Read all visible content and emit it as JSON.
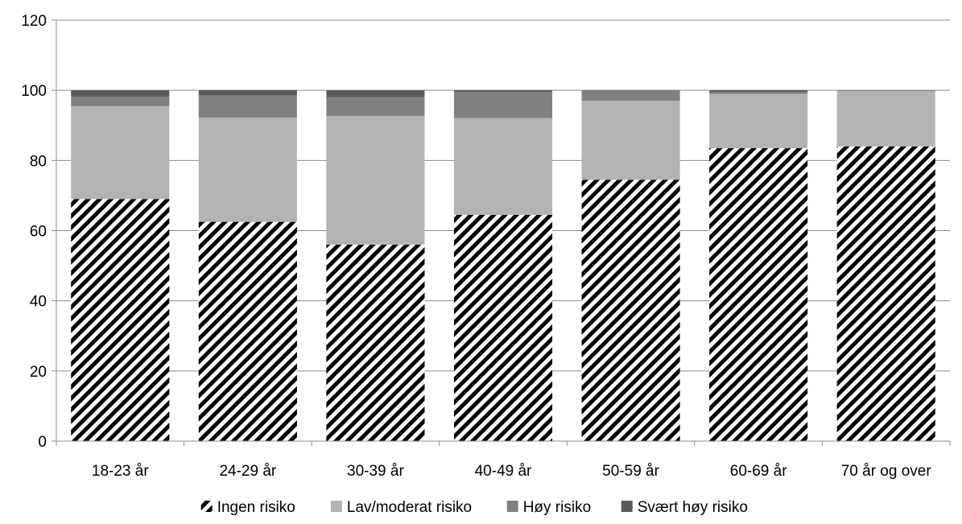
{
  "chart_data": {
    "type": "bar",
    "stacked": true,
    "title": "",
    "xlabel": "",
    "ylabel": "",
    "ylim": [
      0,
      120
    ],
    "yticks": [
      0,
      20,
      40,
      60,
      80,
      100,
      120
    ],
    "grid": true,
    "legend_position": "bottom",
    "categories": [
      "18-23 år",
      "24-29 år",
      "30-39 år",
      "40-49 år",
      "50-59 år",
      "60-69 år",
      "70 år og over"
    ],
    "series": [
      {
        "name": "Ingen risiko",
        "pattern": "diagonal-hatch",
        "color": "#000000",
        "values": [
          69,
          62.5,
          56,
          64.5,
          74.5,
          83.5,
          84
        ]
      },
      {
        "name": "Lav/moderat risiko",
        "color": "#b3b3b3",
        "values": [
          26.5,
          29.7,
          36.7,
          27.6,
          22.5,
          15.5,
          15.8
        ]
      },
      {
        "name": "Høy risiko",
        "color": "#808080",
        "values": [
          2.7,
          6.3,
          5.4,
          7.4,
          3.0,
          0.5,
          0.2
        ]
      },
      {
        "name": "Svært høy risiko",
        "color": "#595959",
        "values": [
          1.8,
          1.5,
          1.9,
          0.5,
          0.0,
          0.5,
          0.0
        ]
      }
    ]
  }
}
